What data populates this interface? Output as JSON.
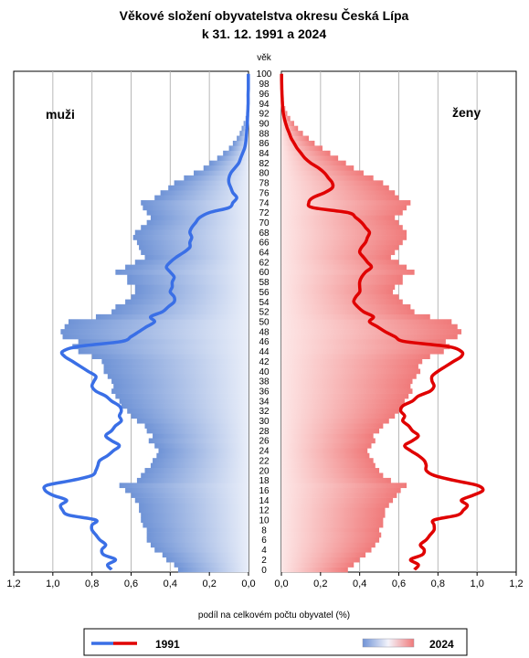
{
  "chart_data": {
    "type": "population-pyramid",
    "title_line1": "Věkové složení obyvatelstva okresu Česká Lípa",
    "title_line2": "k 31. 12. 1991 a 2024",
    "age_axis_label": "věk",
    "xlabel": "podíl na celkovém počtu obyvatel (%)",
    "left_label": "muži",
    "right_label": "ženy",
    "xlim": [
      0,
      1.2
    ],
    "x_ticks_left": [
      "1,2",
      "1,0",
      "0,8",
      "0,6",
      "0,4",
      "0,2",
      "0,0"
    ],
    "x_ticks_right": [
      "0,0",
      "0,2",
      "0,4",
      "0,6",
      "0,8",
      "1,0",
      "1,2"
    ],
    "age_ticks": [
      "0",
      "2",
      "4",
      "6",
      "8",
      "10",
      "12",
      "14",
      "16",
      "18",
      "20",
      "22",
      "24",
      "26",
      "28",
      "30",
      "32",
      "34",
      "36",
      "38",
      "40",
      "42",
      "44",
      "46",
      "48",
      "50",
      "52",
      "54",
      "56",
      "58",
      "60",
      "62",
      "64",
      "66",
      "68",
      "70",
      "72",
      "74",
      "76",
      "78",
      "80",
      "82",
      "84",
      "86",
      "88",
      "90",
      "92",
      "94",
      "96",
      "98",
      "100"
    ],
    "legend": {
      "line_label": "1991",
      "bar_label": "2024"
    },
    "series_2024_men": [
      0.36,
      0.38,
      0.42,
      0.44,
      0.48,
      0.5,
      0.52,
      0.52,
      0.52,
      0.54,
      0.55,
      0.55,
      0.56,
      0.56,
      0.58,
      0.6,
      0.63,
      0.66,
      0.57,
      0.55,
      0.53,
      0.5,
      0.49,
      0.47,
      0.46,
      0.48,
      0.51,
      0.49,
      0.52,
      0.53,
      0.57,
      0.6,
      0.62,
      0.65,
      0.66,
      0.68,
      0.7,
      0.69,
      0.7,
      0.72,
      0.74,
      0.74,
      0.75,
      0.8,
      0.87,
      0.9,
      0.87,
      0.95,
      0.96,
      0.94,
      0.92,
      0.78,
      0.7,
      0.68,
      0.63,
      0.6,
      0.58,
      0.58,
      0.62,
      0.62,
      0.68,
      0.63,
      0.58,
      0.53,
      0.55,
      0.56,
      0.57,
      0.59,
      0.58,
      0.55,
      0.52,
      0.5,
      0.52,
      0.54,
      0.55,
      0.48,
      0.45,
      0.41,
      0.38,
      0.33,
      0.28,
      0.23,
      0.2,
      0.16,
      0.13,
      0.1,
      0.08,
      0.06,
      0.045,
      0.035,
      0.025,
      0.015,
      0.01,
      0.006,
      0.004,
      0.002,
      0.001,
      0.0005,
      0.0003,
      0.0002,
      0.0001
    ],
    "series_2024_women": [
      0.34,
      0.37,
      0.4,
      0.43,
      0.46,
      0.48,
      0.5,
      0.51,
      0.5,
      0.52,
      0.52,
      0.53,
      0.53,
      0.55,
      0.57,
      0.59,
      0.61,
      0.64,
      0.56,
      0.52,
      0.5,
      0.48,
      0.47,
      0.45,
      0.44,
      0.46,
      0.48,
      0.47,
      0.5,
      0.52,
      0.55,
      0.58,
      0.6,
      0.62,
      0.63,
      0.65,
      0.67,
      0.66,
      0.67,
      0.69,
      0.71,
      0.7,
      0.72,
      0.76,
      0.83,
      0.86,
      0.84,
      0.9,
      0.92,
      0.9,
      0.87,
      0.76,
      0.68,
      0.66,
      0.62,
      0.6,
      0.57,
      0.58,
      0.62,
      0.62,
      0.68,
      0.64,
      0.6,
      0.56,
      0.58,
      0.6,
      0.62,
      0.64,
      0.64,
      0.62,
      0.6,
      0.58,
      0.62,
      0.64,
      0.66,
      0.6,
      0.58,
      0.55,
      0.52,
      0.47,
      0.42,
      0.37,
      0.33,
      0.29,
      0.25,
      0.21,
      0.17,
      0.14,
      0.11,
      0.085,
      0.065,
      0.045,
      0.03,
      0.02,
      0.013,
      0.008,
      0.005,
      0.003,
      0.002,
      0.001,
      0.0006
    ],
    "series_1991_men": [
      0.7,
      0.72,
      0.68,
      0.74,
      0.75,
      0.73,
      0.76,
      0.78,
      0.8,
      0.8,
      0.78,
      0.92,
      0.95,
      0.96,
      0.93,
      1.0,
      1.04,
      1.03,
      0.9,
      0.8,
      0.78,
      0.77,
      0.76,
      0.72,
      0.69,
      0.66,
      0.7,
      0.73,
      0.7,
      0.68,
      0.65,
      0.66,
      0.65,
      0.66,
      0.7,
      0.73,
      0.78,
      0.8,
      0.79,
      0.78,
      0.82,
      0.86,
      0.9,
      0.94,
      0.95,
      0.87,
      0.65,
      0.6,
      0.56,
      0.52,
      0.48,
      0.5,
      0.44,
      0.41,
      0.38,
      0.38,
      0.4,
      0.39,
      0.39,
      0.38,
      0.4,
      0.42,
      0.4,
      0.37,
      0.33,
      0.3,
      0.3,
      0.29,
      0.3,
      0.29,
      0.27,
      0.25,
      0.2,
      0.1,
      0.08,
      0.06,
      0.08,
      0.09,
      0.1,
      0.1,
      0.09,
      0.07,
      0.05,
      0.04,
      0.03,
      0.02,
      0.015,
      0.012,
      0.01,
      0.008,
      0.006,
      0.005,
      0.004,
      0.003,
      0.002,
      0.002,
      0.002,
      0.001,
      0.001,
      0.001,
      0.001
    ],
    "series_1991_women": [
      0.68,
      0.7,
      0.66,
      0.72,
      0.73,
      0.71,
      0.74,
      0.76,
      0.78,
      0.78,
      0.78,
      0.9,
      0.93,
      0.95,
      0.92,
      0.98,
      1.03,
      1.0,
      0.88,
      0.78,
      0.74,
      0.74,
      0.73,
      0.7,
      0.66,
      0.63,
      0.67,
      0.7,
      0.67,
      0.65,
      0.62,
      0.63,
      0.61,
      0.62,
      0.67,
      0.7,
      0.76,
      0.78,
      0.77,
      0.77,
      0.8,
      0.84,
      0.88,
      0.92,
      0.92,
      0.85,
      0.63,
      0.58,
      0.53,
      0.49,
      0.45,
      0.47,
      0.42,
      0.39,
      0.37,
      0.38,
      0.4,
      0.4,
      0.4,
      0.41,
      0.43,
      0.46,
      0.44,
      0.42,
      0.4,
      0.41,
      0.43,
      0.44,
      0.45,
      0.43,
      0.41,
      0.38,
      0.34,
      0.16,
      0.14,
      0.16,
      0.22,
      0.26,
      0.26,
      0.24,
      0.22,
      0.19,
      0.15,
      0.12,
      0.1,
      0.08,
      0.065,
      0.05,
      0.04,
      0.03,
      0.022,
      0.015,
      0.01,
      0.007,
      0.005,
      0.004,
      0.003,
      0.002,
      0.0015,
      0.001,
      0.001
    ]
  }
}
